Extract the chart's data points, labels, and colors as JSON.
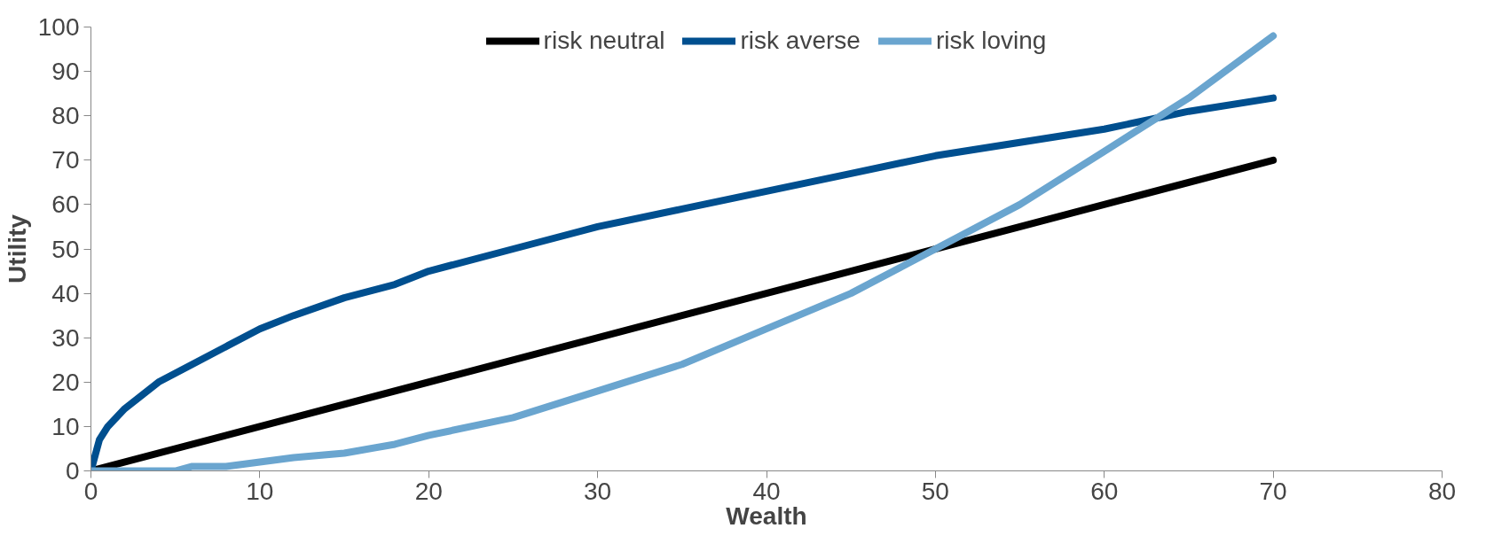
{
  "chart_data": {
    "type": "line",
    "xlabel": "Wealth",
    "ylabel": "Utility",
    "xlim": [
      0,
      80
    ],
    "ylim": [
      0,
      100
    ],
    "xticks": [
      0,
      10,
      20,
      30,
      40,
      50,
      60,
      70,
      80
    ],
    "yticks": [
      0,
      10,
      20,
      30,
      40,
      50,
      60,
      70,
      80,
      90,
      100
    ],
    "grid": false,
    "legend": "top",
    "marker": "none",
    "line_style": "solid",
    "series": [
      {
        "name": "risk neutral",
        "color": "#000000",
        "x": [
          0,
          70
        ],
        "values": [
          0,
          70
        ]
      },
      {
        "name": "risk averse",
        "color": "#004f8f",
        "x": [
          0,
          0.5,
          1,
          2,
          3,
          4,
          5,
          6,
          8,
          10,
          12,
          15,
          18,
          20,
          25,
          30,
          35,
          40,
          45,
          50,
          55,
          60,
          65,
          70
        ],
        "values": [
          0,
          7,
          10,
          14,
          17,
          20,
          22,
          24,
          28,
          32,
          35,
          39,
          42,
          45,
          50,
          55,
          59,
          63,
          67,
          71,
          74,
          77,
          81,
          84
        ]
      },
      {
        "name": "risk loving",
        "color": "#6aa5cf",
        "x": [
          0,
          0.5,
          1,
          2,
          3,
          4,
          5,
          6,
          8,
          10,
          12,
          15,
          18,
          20,
          25,
          30,
          35,
          40,
          45,
          50,
          55,
          60,
          65,
          70
        ],
        "values": [
          0,
          0,
          0,
          0,
          0,
          0,
          0,
          1,
          1,
          2,
          3,
          4,
          6,
          8,
          12,
          18,
          24,
          32,
          40,
          50,
          60,
          72,
          84,
          98
        ]
      }
    ]
  }
}
